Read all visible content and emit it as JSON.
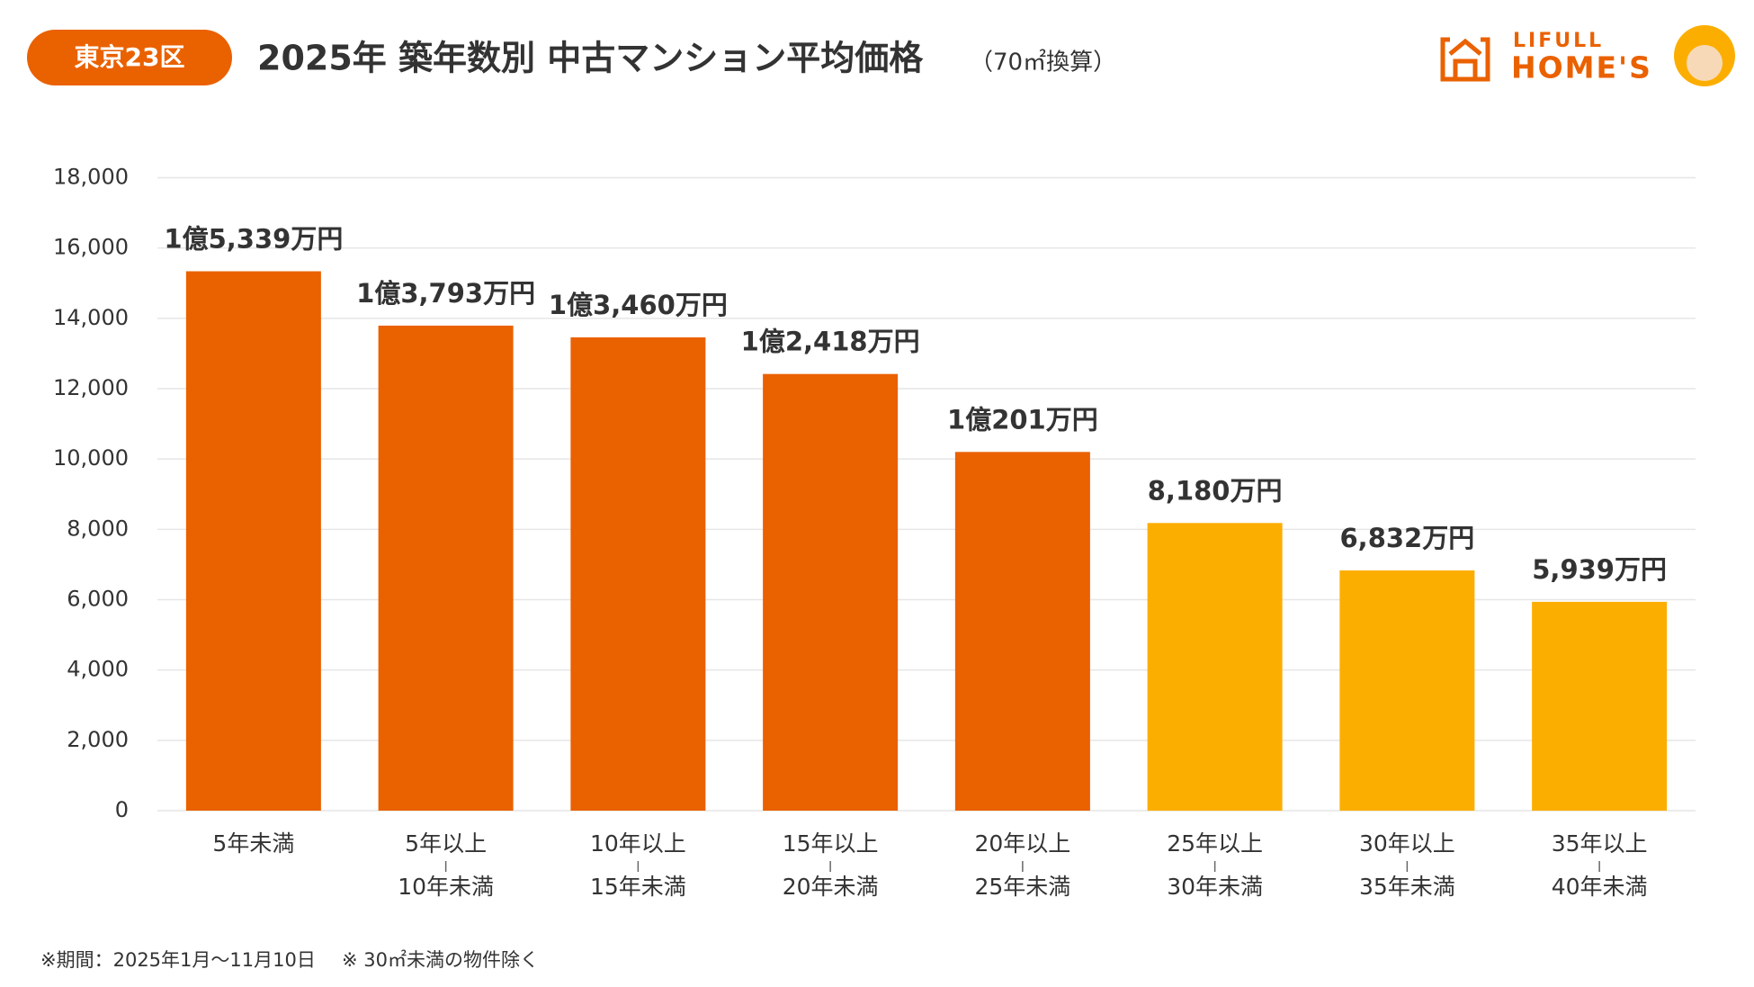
{
  "header": {
    "badge": "東京23区",
    "title": "2025年 築年数別 中古マンション平均価格",
    "subtitle": "（70㎡換算）",
    "logo_top": "LIFULL",
    "logo_bottom": "HOME'S"
  },
  "chart_data": {
    "type": "bar",
    "categories": [
      [
        "5年未満"
      ],
      [
        "5年以上",
        "10年未満"
      ],
      [
        "10年以上",
        "15年未満"
      ],
      [
        "15年以上",
        "20年未満"
      ],
      [
        "20年以上",
        "25年未満"
      ],
      [
        "25年以上",
        "30年未満"
      ],
      [
        "30年以上",
        "35年未満"
      ],
      [
        "35年以上",
        "40年未満"
      ]
    ],
    "values": [
      15339,
      13793,
      13460,
      12418,
      10201,
      8180,
      6832,
      5939
    ],
    "value_labels": [
      "1億5,339万円",
      "1億3,793万円",
      "1億3,460万円",
      "1億2,418万円",
      "1億201万円",
      "8,180万円",
      "6,832万円",
      "5,939万円"
    ],
    "colors": [
      "#ea6100",
      "#ea6100",
      "#ea6100",
      "#ea6100",
      "#ea6100",
      "#fcae00",
      "#fcae00",
      "#fcae00"
    ],
    "ylim": [
      0,
      18000
    ],
    "yticks": [
      0,
      {
        "value": 2000,
        "label": "2,000"
      },
      {
        "value": 4000,
        "label": "4,000"
      },
      {
        "value": 6000,
        "label": "6,000"
      },
      {
        "value": 8000,
        "label": "8,000"
      },
      {
        "value": 10000,
        "label": "10,000"
      },
      {
        "value": 12000,
        "label": "12,000"
      },
      {
        "value": 14000,
        "label": "14,000"
      },
      {
        "value": 16000,
        "label": "16,000"
      },
      {
        "value": 18000,
        "label": "18,000"
      }
    ],
    "grid": true
  },
  "footer": {
    "notes": [
      "※期間：2025年1月〜11月10日",
      "※ 30㎡未満の物件除く"
    ]
  }
}
